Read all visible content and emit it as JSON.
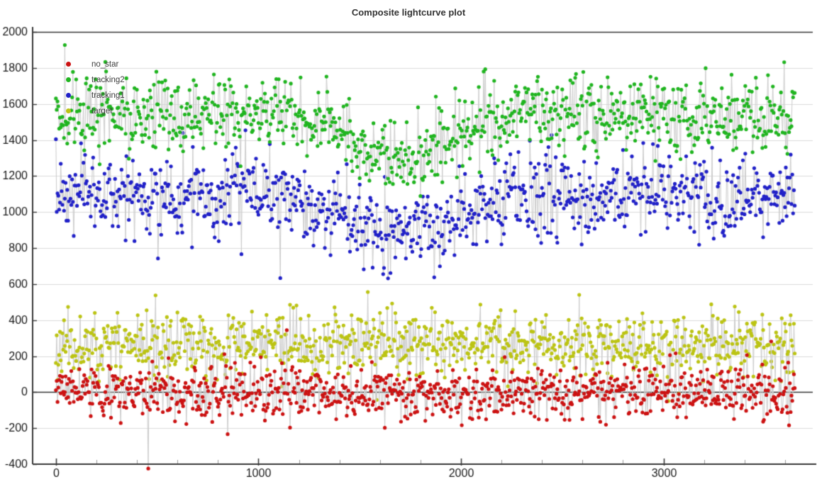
{
  "chart_data": {
    "type": "scatter",
    "title": "Composite lightcurve plot",
    "xlabel": "",
    "ylabel": "",
    "axes": {
      "xlim": [
        -115,
        3737
      ],
      "ylim": [
        -400,
        2000
      ],
      "x_ticks": [
        0,
        1000,
        2000,
        3000
      ],
      "x_minor_step": 200,
      "y_ticks": [
        2000,
        1800,
        1600,
        1400,
        1200,
        1000,
        800,
        600,
        400,
        200,
        0,
        -200,
        -400
      ],
      "emphasized_y_lines": [
        2000,
        0
      ],
      "grid": "horizontal",
      "axis_color": "#3a3a3a",
      "grid_color": "#dcdcdc",
      "minor_tick_color": "#9a9a9a",
      "tick_label_color": "#1a1a1a"
    },
    "legend": {
      "position": "top-left",
      "entries": [
        {
          "label": "no_star",
          "color": "#cc1212"
        },
        {
          "label": "tracking2",
          "color": "#20b520"
        },
        {
          "label": "tracking1",
          "color": "#2121c8"
        },
        {
          "label": "target",
          "color": "#bcc414"
        }
      ]
    },
    "line_color": "#cccccc",
    "marker_radius": 2.6,
    "x_start": 0,
    "x_end": 3650,
    "x_step": 4,
    "dip": {
      "center": 1690,
      "sigma": 240
    },
    "series": [
      {
        "name": "target",
        "color": "#bcc414",
        "baseline": 262,
        "sigma": 88,
        "dip_depth": 0,
        "seed": 11
      },
      {
        "name": "tracking1",
        "color": "#2121c8",
        "baseline": 1095,
        "sigma": 112,
        "dip_depth": 215,
        "seed": 7
      },
      {
        "name": "tracking2",
        "color": "#20b520",
        "baseline": 1548,
        "sigma": 105,
        "dip_depth": 250,
        "seed": 3
      },
      {
        "name": "no_star",
        "color": "#cc1212",
        "baseline": 2,
        "sigma": 72,
        "dip_depth": 0,
        "seed": 5
      }
    ]
  }
}
